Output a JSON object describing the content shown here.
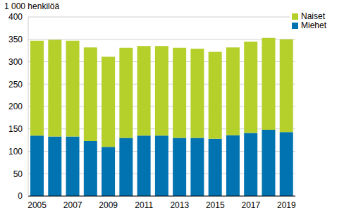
{
  "chart_data": {
    "type": "bar",
    "stacked": true,
    "ylabel": "1 000 henkilöä",
    "categories": [
      "2005",
      null,
      "2007",
      null,
      "2009",
      null,
      "2011",
      null,
      "2013",
      null,
      "2015",
      null,
      "2017",
      null,
      "2019"
    ],
    "series": [
      {
        "name": "Miehet",
        "color": "#0073b0",
        "values": [
          135,
          133,
          133,
          123,
          110,
          130,
          135,
          135,
          130,
          130,
          128,
          136,
          141,
          148,
          143
        ]
      },
      {
        "name": "Naiset",
        "color": "#b5cf2b",
        "values": [
          212,
          216,
          214,
          209,
          201,
          201,
          200,
          200,
          201,
          199,
          194,
          196,
          204,
          205,
          207
        ]
      }
    ],
    "ylim": [
      0,
      400
    ],
    "yticks": [
      0,
      50,
      100,
      150,
      200,
      250,
      300,
      350,
      400
    ],
    "grid": true,
    "legend": "upper right"
  }
}
